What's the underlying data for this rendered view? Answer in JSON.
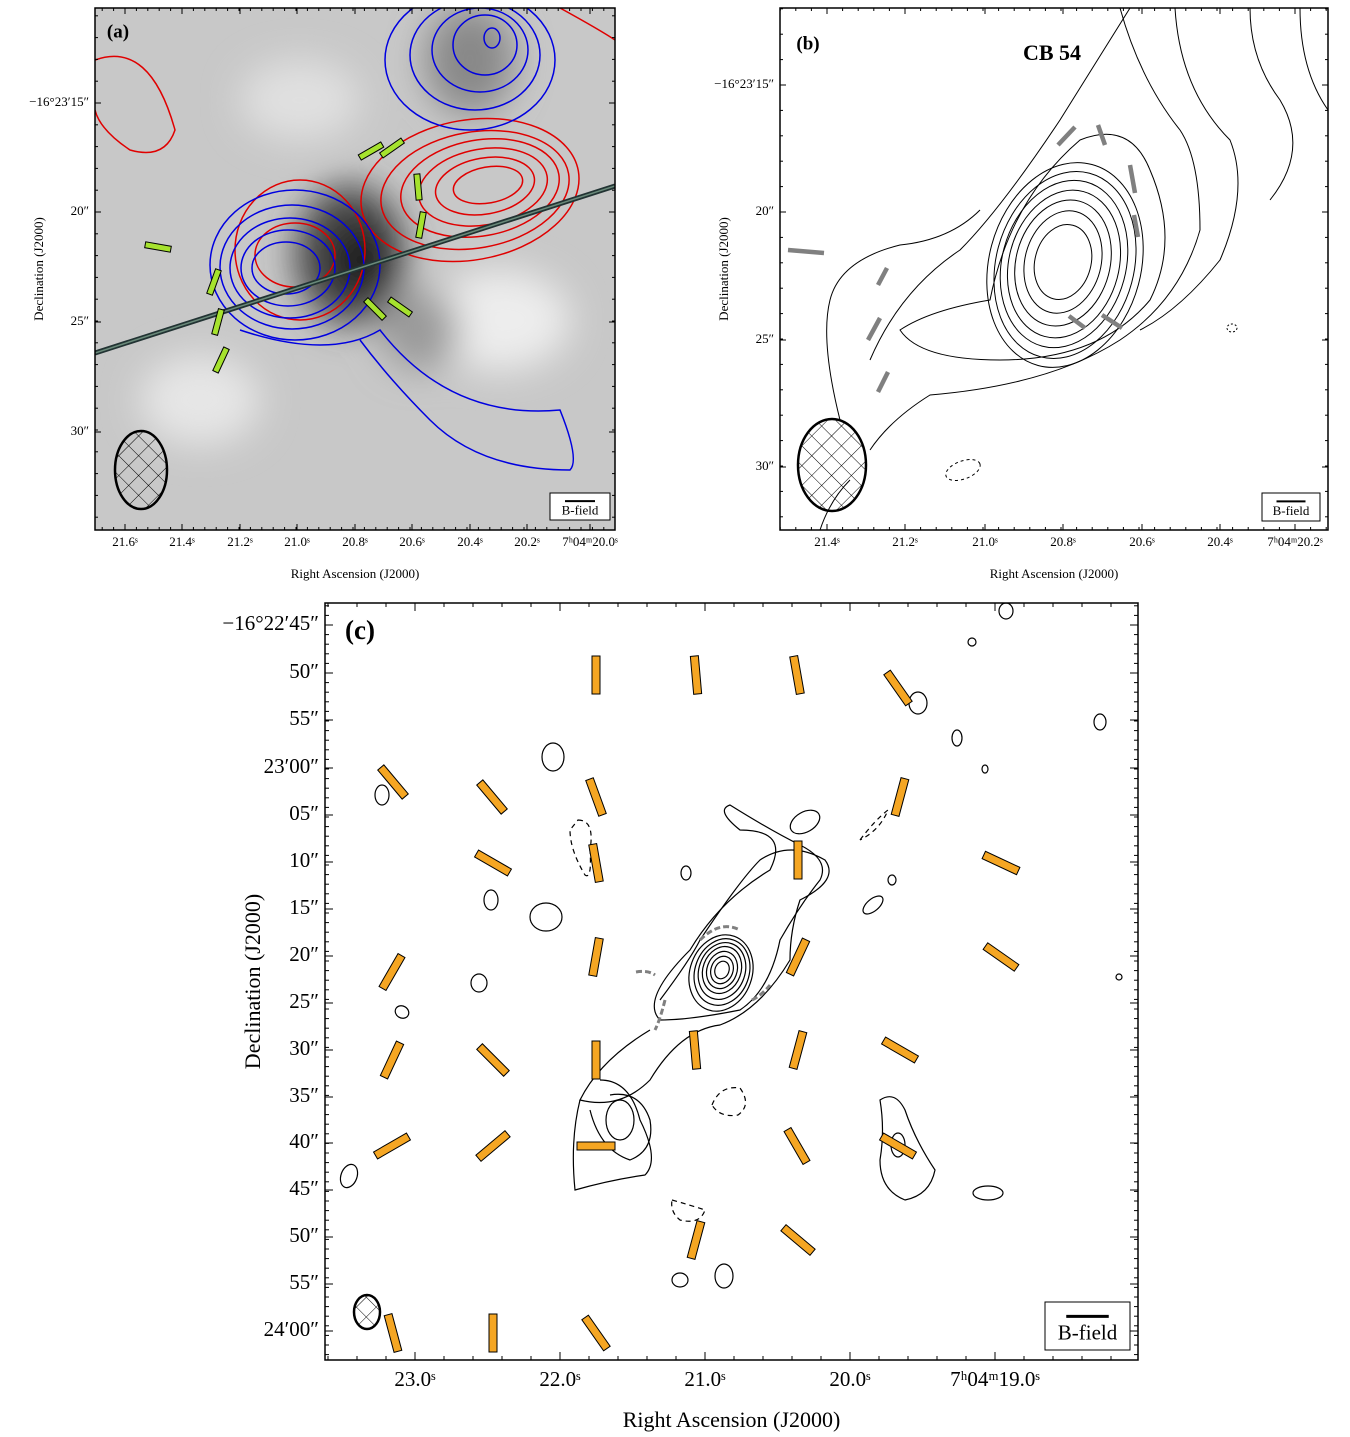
{
  "panels": [
    {
      "label": "(a)",
      "ra_ticks": [
        "21.6ˢ",
        "21.4ˢ",
        "21.2ˢ",
        "21.0ˢ",
        "20.8ˢ",
        "20.6ˢ",
        "20.4ˢ",
        "20.2ˢ",
        "7ʰ04ᵐ20.0ˢ"
      ],
      "dec_ticks": [
        "−16°23′15″",
        "20″",
        "25″",
        "30″"
      ],
      "x_label": "Right Ascension (J2000)",
      "y_label": "Declination (J2000)",
      "legend": "B-field"
    },
    {
      "label": "(b)",
      "source": "CB 54",
      "ra_ticks": [
        "21.4ˢ",
        "21.2ˢ",
        "21.0ˢ",
        "20.8ˢ",
        "20.6ˢ",
        "20.4ˢ",
        "7ʰ04ᵐ20.2ˢ"
      ],
      "dec_ticks": [
        "−16°23′15″",
        "20″",
        "25″",
        "30″"
      ],
      "x_label": "Right Ascension (J2000)",
      "y_label": "Declination (J2000)",
      "legend": "B-field"
    },
    {
      "label": "(c)",
      "ra_ticks": [
        "23.0ˢ",
        "22.0ˢ",
        "21.0ˢ",
        "20.0ˢ",
        "7ʰ04ᵐ19.0ˢ"
      ],
      "dec_ticks": [
        "−16°22′45″",
        "50″",
        "55″",
        "23′00″",
        "05″",
        "10″",
        "15″",
        "20″",
        "25″",
        "30″",
        "35″",
        "40″",
        "45″",
        "50″",
        "55″",
        "24′00″"
      ],
      "x_label": "Right Ascension (J2000)",
      "y_label": "Declination (J2000)",
      "legend": "B-field"
    }
  ]
}
